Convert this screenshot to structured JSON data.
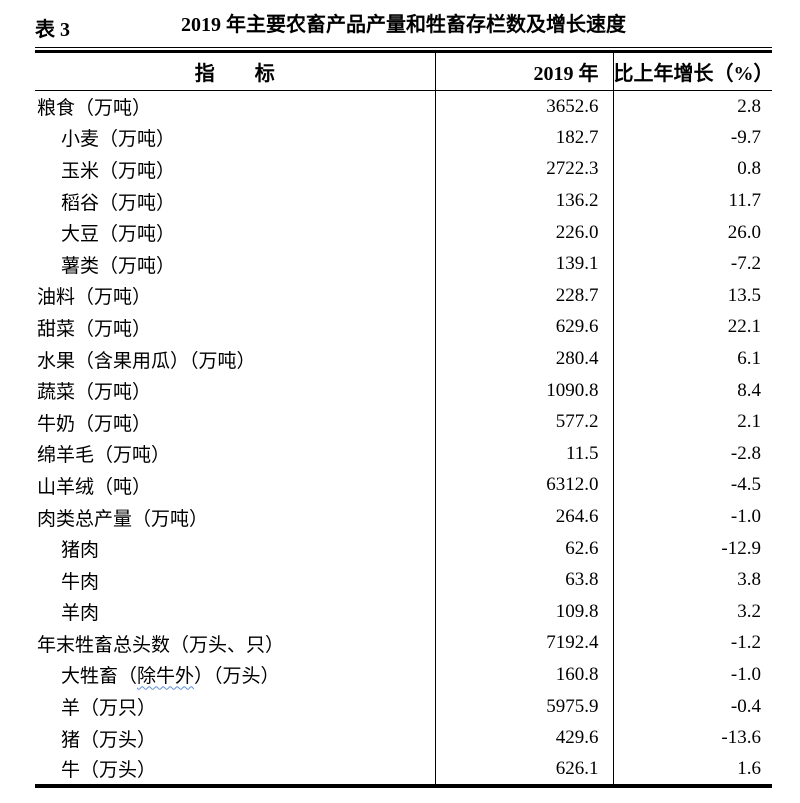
{
  "page": {
    "table_label": "表 3",
    "table_title": "2019 年主要农畜产品产量和牲畜存栏数及增长速度"
  },
  "table": {
    "header": {
      "indicator": "指　　标",
      "year": "2019 年",
      "growth": "比上年增长（%）"
    },
    "rows": [
      {
        "label": "粮食（万吨）",
        "value": "3652.6",
        "growth": "2.8",
        "indent": 0
      },
      {
        "label": "小麦（万吨）",
        "value": "182.7",
        "growth": "-9.7",
        "indent": 1
      },
      {
        "label": "玉米（万吨）",
        "value": "2722.3",
        "growth": "0.8",
        "indent": 1
      },
      {
        "label": "稻谷（万吨）",
        "value": "136.2",
        "growth": "11.7",
        "indent": 1
      },
      {
        "label": "大豆（万吨）",
        "value": "226.0",
        "growth": "26.0",
        "indent": 1
      },
      {
        "label": "薯类（万吨）",
        "value": "139.1",
        "growth": "-7.2",
        "indent": 1
      },
      {
        "label": "油料（万吨）",
        "value": "228.7",
        "growth": "13.5",
        "indent": 0
      },
      {
        "label": "甜菜（万吨）",
        "value": "629.6",
        "growth": "22.1",
        "indent": 0
      },
      {
        "label": "水果（含果用瓜）（万吨）",
        "value": "280.4",
        "growth": "6.1",
        "indent": 0
      },
      {
        "label": "蔬菜（万吨）",
        "value": "1090.8",
        "growth": "8.4",
        "indent": 0
      },
      {
        "label": "牛奶（万吨）",
        "value": "577.2",
        "growth": "2.1",
        "indent": 0
      },
      {
        "label": "绵羊毛（万吨）",
        "value": "11.5",
        "growth": "-2.8",
        "indent": 0
      },
      {
        "label": "山羊绒（吨）",
        "value": "6312.0",
        "growth": "-4.5",
        "indent": 0
      },
      {
        "label": "肉类总产量（万吨）",
        "value": "264.6",
        "growth": "-1.0",
        "indent": 0
      },
      {
        "label": "猪肉",
        "value": "62.6",
        "growth": "-12.9",
        "indent": 1
      },
      {
        "label": "牛肉",
        "value": "63.8",
        "growth": "3.8",
        "indent": 1
      },
      {
        "label": "羊肉",
        "value": "109.8",
        "growth": "3.2",
        "indent": 1
      },
      {
        "label": "年末牲畜总头数（万头、只）",
        "value": "7192.4",
        "growth": "-1.2",
        "indent": 0
      },
      {
        "label": "大牲畜（除牛外）（万头）",
        "label_parts": {
          "pre": "大牲畜（",
          "wavy": "除牛外",
          "post": "）（万头）"
        },
        "value": "160.8",
        "growth": "-1.0",
        "indent": 1
      },
      {
        "label": "羊（万只）",
        "value": "5975.9",
        "growth": "-0.4",
        "indent": 1
      },
      {
        "label": "猪（万头）",
        "value": "429.6",
        "growth": "-13.6",
        "indent": 1
      },
      {
        "label": "牛（万头）",
        "value": "626.1",
        "growth": "1.6",
        "indent": 1
      }
    ]
  },
  "style": {
    "spellcheck_underline_color": "#5b8ed6"
  }
}
